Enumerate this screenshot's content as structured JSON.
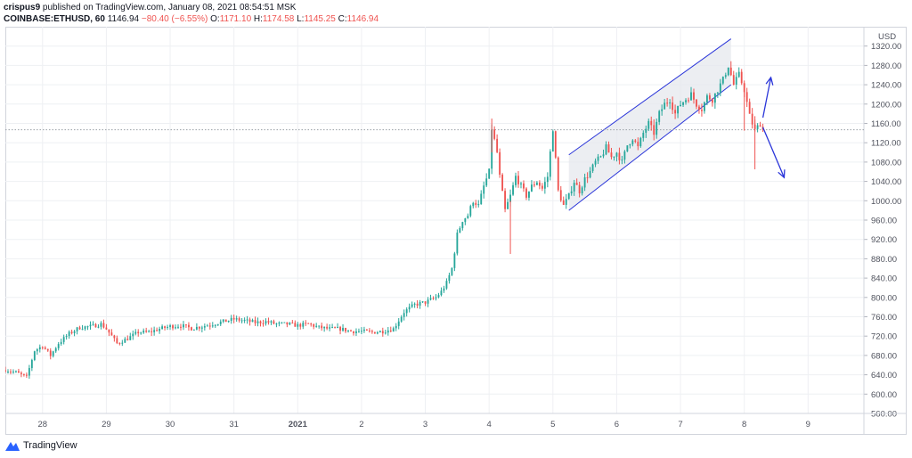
{
  "header": {
    "user": "crispus9",
    "published_text": "published on TradingView.com, January 08, 2021 08:54:51 MSK"
  },
  "symbol_line": {
    "symbol": "COINBASE:ETHUSD, 60",
    "last": "1146.94",
    "change": "−80.40 (−6.55%)",
    "o_label": "O:",
    "o_value": "1171.10",
    "h_label": "H:",
    "h_value": "1174.58",
    "l_label": "L:",
    "l_value": "1145.25",
    "c_label": "C:",
    "c_value": "1146.94"
  },
  "footer": {
    "brand": "TradingView"
  },
  "colors": {
    "up": "#26a69a",
    "down": "#ef5350",
    "grid": "#eef0f3",
    "channel": "#2a35d9",
    "channel_fill": "#e6e8ee",
    "arrow": "#2a35d9",
    "price_line": "#9aa0a6",
    "axis_text": "#50535e"
  },
  "chart_data": {
    "type": "candlestick",
    "currency": "USD",
    "ylim": [
      560,
      1360
    ],
    "y_ticks": [
      560,
      600,
      640,
      680,
      720,
      760,
      800,
      840,
      880,
      920,
      960,
      1000,
      1040,
      1080,
      1120,
      1160,
      1200,
      1240,
      1280,
      1320
    ],
    "y_tick_labels": [
      "560.00",
      "600.00",
      "640.00",
      "680.00",
      "720.00",
      "760.00",
      "800.00",
      "840.00",
      "880.00",
      "920.00",
      "960.00",
      "1000.00",
      "1040.00",
      "1080.00",
      "1120.00",
      "1160.00",
      "1200.00",
      "1240.00",
      "1280.00",
      "1320.00"
    ],
    "x_ticks": [
      {
        "label": "28",
        "hour": 0
      },
      {
        "label": "29",
        "hour": 24
      },
      {
        "label": "30",
        "hour": 48
      },
      {
        "label": "31",
        "hour": 72
      },
      {
        "label": "2021",
        "hour": 96,
        "bold": true
      },
      {
        "label": "2",
        "hour": 120
      },
      {
        "label": "3",
        "hour": 144
      },
      {
        "label": "4",
        "hour": 168
      },
      {
        "label": "5",
        "hour": 192
      },
      {
        "label": "6",
        "hour": 216
      },
      {
        "label": "7",
        "hour": 240
      },
      {
        "label": "8",
        "hour": 264
      },
      {
        "label": "9",
        "hour": 288
      }
    ],
    "x_range_hours": [
      -14,
      309
    ],
    "last_price": 1146.94,
    "keypoints": [
      [
        -14,
        650
      ],
      [
        -10,
        645
      ],
      [
        -6,
        635
      ],
      [
        -3,
        690
      ],
      [
        0,
        700
      ],
      [
        3,
        680
      ],
      [
        6,
        705
      ],
      [
        10,
        725
      ],
      [
        14,
        738
      ],
      [
        18,
        740
      ],
      [
        22,
        745
      ],
      [
        24,
        735
      ],
      [
        28,
        705
      ],
      [
        32,
        715
      ],
      [
        36,
        728
      ],
      [
        40,
        728
      ],
      [
        44,
        735
      ],
      [
        48,
        740
      ],
      [
        52,
        742
      ],
      [
        56,
        736
      ],
      [
        60,
        740
      ],
      [
        64,
        745
      ],
      [
        68,
        750
      ],
      [
        72,
        755
      ],
      [
        76,
        752
      ],
      [
        80,
        748
      ],
      [
        84,
        750
      ],
      [
        88,
        745
      ],
      [
        92,
        745
      ],
      [
        96,
        742
      ],
      [
        100,
        745
      ],
      [
        104,
        738
      ],
      [
        108,
        735
      ],
      [
        112,
        735
      ],
      [
        116,
        730
      ],
      [
        120,
        730
      ],
      [
        124,
        728
      ],
      [
        128,
        730
      ],
      [
        132,
        735
      ],
      [
        136,
        770
      ],
      [
        140,
        785
      ],
      [
        144,
        790
      ],
      [
        148,
        800
      ],
      [
        150,
        812
      ],
      [
        152,
        830
      ],
      [
        154,
        860
      ],
      [
        156,
        930
      ],
      [
        158,
        960
      ],
      [
        160,
        970
      ],
      [
        162,
        1000
      ],
      [
        164,
        990
      ],
      [
        166,
        1030
      ],
      [
        168,
        1060
      ],
      [
        169,
        1150
      ],
      [
        171,
        1100
      ],
      [
        172,
        1050
      ],
      [
        174,
        980
      ],
      [
        176,
        1010
      ],
      [
        178,
        1050
      ],
      [
        180,
        1030
      ],
      [
        182,
        1010
      ],
      [
        184,
        1030
      ],
      [
        186,
        1040
      ],
      [
        188,
        1025
      ],
      [
        190,
        1050
      ],
      [
        192,
        1150
      ],
      [
        194,
        1020
      ],
      [
        196,
        990
      ],
      [
        198,
        1010
      ],
      [
        200,
        1040
      ],
      [
        202,
        1020
      ],
      [
        204,
        1045
      ],
      [
        206,
        1060
      ],
      [
        208,
        1080
      ],
      [
        210,
        1090
      ],
      [
        212,
        1110
      ],
      [
        214,
        1090
      ],
      [
        216,
        1100
      ],
      [
        218,
        1080
      ],
      [
        220,
        1115
      ],
      [
        222,
        1130
      ],
      [
        224,
        1110
      ],
      [
        226,
        1140
      ],
      [
        228,
        1160
      ],
      [
        230,
        1140
      ],
      [
        232,
        1180
      ],
      [
        234,
        1200
      ],
      [
        236,
        1210
      ],
      [
        238,
        1180
      ],
      [
        240,
        1200
      ],
      [
        242,
        1210
      ],
      [
        244,
        1220
      ],
      [
        246,
        1200
      ],
      [
        248,
        1190
      ],
      [
        250,
        1215
      ],
      [
        252,
        1210
      ],
      [
        254,
        1230
      ],
      [
        256,
        1250
      ],
      [
        258,
        1280
      ],
      [
        260,
        1240
      ],
      [
        262,
        1260
      ],
      [
        264,
        1230
      ],
      [
        266,
        1175
      ],
      [
        268,
        1145
      ],
      [
        270,
        1160
      ],
      [
        271,
        1147
      ]
    ],
    "channel": {
      "upper": [
        [
          198,
          1095
        ],
        [
          259,
          1335
        ]
      ],
      "lower": [
        [
          198,
          980
        ],
        [
          259,
          1240
        ]
      ]
    },
    "arrows": [
      {
        "from": [
          271,
          1172
        ],
        "to": [
          274,
          1255
        ],
        "direction": "up"
      },
      {
        "from": [
          271,
          1152
        ],
        "to": [
          279,
          1048
        ],
        "direction": "down"
      }
    ]
  }
}
